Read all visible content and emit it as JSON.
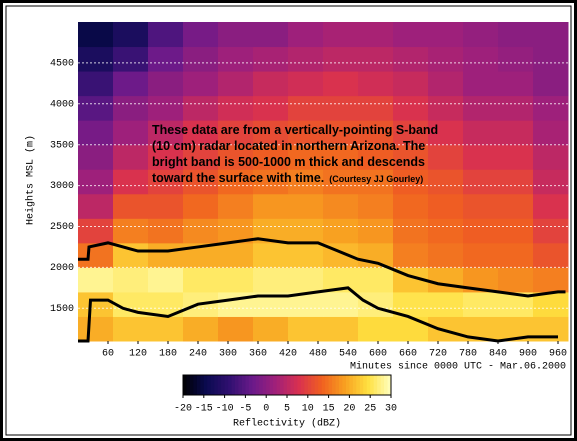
{
  "chart_data": {
    "type": "heatmap",
    "ylabel": "Heights MSL (m)",
    "xlabel": "Minutes since 0000 UTC - Mar.06.2000",
    "xlim": [
      0,
      980
    ],
    "xticks": [
      60,
      120,
      180,
      240,
      300,
      360,
      420,
      480,
      540,
      600,
      660,
      720,
      780,
      840,
      900,
      960
    ],
    "ylim": [
      1100,
      5000
    ],
    "yticks": [
      1500,
      2000,
      2500,
      3000,
      3500,
      4000,
      4500
    ],
    "grid": true,
    "x_bins": [
      0,
      70,
      140,
      210,
      280,
      350,
      420,
      490,
      560,
      630,
      700,
      770,
      840,
      910,
      980
    ],
    "y_bins": [
      1100,
      1400,
      1700,
      2000,
      2300,
      2600,
      2900,
      3200,
      3500,
      3800,
      4100,
      4400,
      4700,
      5000
    ],
    "values": [
      [
        20,
        22,
        22,
        20,
        18,
        20,
        22,
        22,
        24,
        24,
        22,
        22,
        22,
        22
      ],
      [
        22,
        26,
        26,
        27,
        28,
        28,
        28,
        28,
        27,
        25,
        25,
        26,
        26,
        24
      ],
      [
        28,
        27,
        28,
        26,
        26,
        27,
        27,
        26,
        26,
        22,
        20,
        18,
        17,
        16
      ],
      [
        15,
        22,
        20,
        20,
        20,
        22,
        22,
        21,
        20,
        16,
        15,
        14,
        14,
        12
      ],
      [
        10,
        16,
        15,
        17,
        18,
        20,
        20,
        19,
        18,
        15,
        14,
        13,
        13,
        10
      ],
      [
        5,
        12,
        12,
        14,
        16,
        18,
        18,
        17,
        16,
        14,
        13,
        12,
        12,
        8
      ],
      [
        2,
        8,
        10,
        12,
        14,
        15,
        16,
        15,
        15,
        13,
        12,
        10,
        10,
        6
      ],
      [
        0,
        5,
        8,
        10,
        12,
        13,
        14,
        14,
        13,
        12,
        10,
        8,
        8,
        5
      ],
      [
        -2,
        2,
        5,
        8,
        10,
        11,
        12,
        12,
        12,
        10,
        8,
        6,
        6,
        3
      ],
      [
        -5,
        0,
        2,
        5,
        7,
        8,
        10,
        10,
        10,
        8,
        6,
        4,
        4,
        2
      ],
      [
        -8,
        -3,
        0,
        2,
        4,
        6,
        7,
        8,
        7,
        6,
        4,
        2,
        2,
        0
      ],
      [
        -12,
        -8,
        -3,
        0,
        2,
        3,
        4,
        5,
        5,
        4,
        3,
        2,
        1,
        0
      ],
      [
        -15,
        -12,
        -6,
        -2,
        0,
        0,
        2,
        3,
        3,
        2,
        2,
        1,
        0,
        0
      ]
    ],
    "colorbar": {
      "label": "Reflectivity (dBZ)",
      "clim": [
        -20,
        30
      ],
      "ticks": [
        -20,
        -15,
        -10,
        -5,
        0,
        5,
        10,
        15,
        20,
        25,
        30
      ],
      "colors": [
        "#000000",
        "#0a0a50",
        "#301070",
        "#6a1a8a",
        "#a0207a",
        "#d83050",
        "#f06020",
        "#f8a020",
        "#ffe040",
        "#ffffc0"
      ]
    },
    "lines": [
      {
        "color": "#000000",
        "x": [
          0,
          20,
          22,
          60,
          120,
          180,
          240,
          300,
          360,
          420,
          480,
          520,
          560,
          600,
          660,
          720,
          780,
          840,
          900,
          960,
          975
        ],
        "values": [
          2100,
          2100,
          2250,
          2300,
          2200,
          2200,
          2250,
          2300,
          2350,
          2300,
          2300,
          2200,
          2100,
          2050,
          1900,
          1800,
          1750,
          1700,
          1650,
          1700,
          1700
        ]
      },
      {
        "color": "#000000",
        "x": [
          0,
          20,
          25,
          60,
          90,
          120,
          180,
          240,
          300,
          360,
          420,
          480,
          540,
          570,
          600,
          660,
          720,
          780,
          840,
          900,
          960
        ],
        "values": [
          1100,
          1100,
          1600,
          1600,
          1500,
          1450,
          1400,
          1550,
          1600,
          1650,
          1650,
          1700,
          1750,
          1600,
          1500,
          1400,
          1250,
          1150,
          1100,
          1150,
          1150
        ]
      }
    ],
    "annotation": {
      "lines": [
        "These data are from a vertically-pointing S-band",
        "(10 cm) radar located in northern Arizona.  The",
        "bright band is 500-1000 m thick and descends",
        "toward the surface with time."
      ],
      "credit": "(Courtesy  JJ Gourley)"
    }
  }
}
